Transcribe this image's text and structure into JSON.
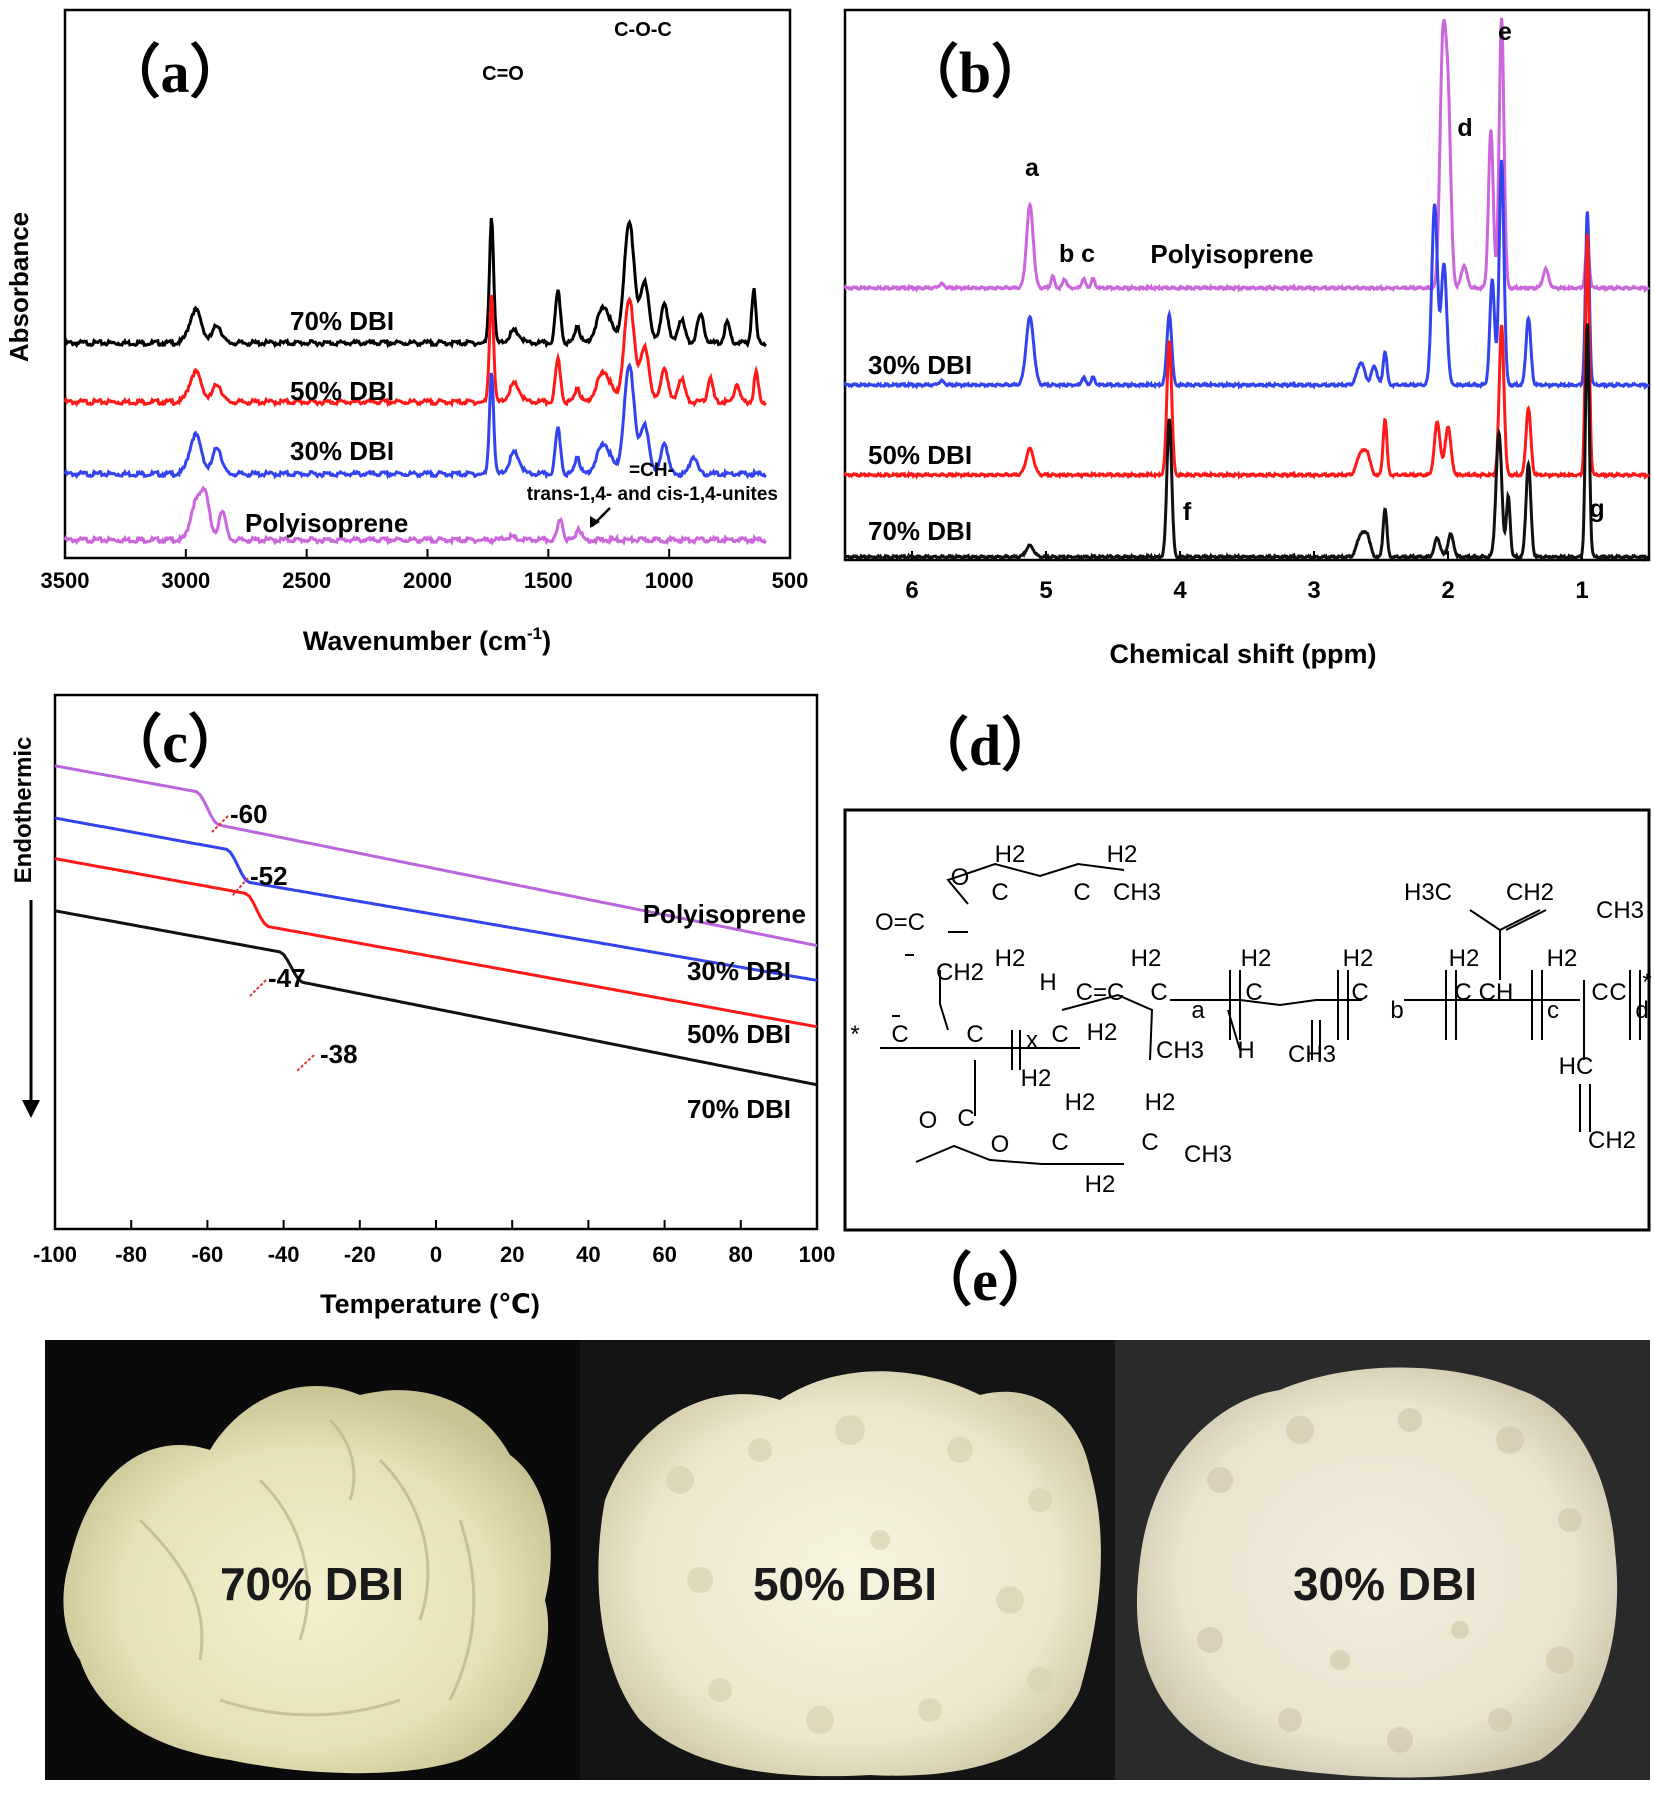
{
  "chart_data": [
    {
      "id": "a",
      "type": "line",
      "panel_label": "（a）",
      "xlabel": "Wavenumber (cm",
      "xlabel_sup": "-1",
      "xlabel_tail": ")",
      "ylabel": "Absorbance",
      "xlim": [
        3500,
        500
      ],
      "xticks": [
        "3500",
        "3000",
        "2500",
        "2000",
        "1500",
        "1000",
        "500"
      ],
      "series": [
        {
          "name": "70% DBI",
          "color": "#000000",
          "offset": 3.0,
          "peaks": [
            [
              2960,
              0.55,
              35
            ],
            [
              2870,
              0.3,
              25
            ],
            [
              1735,
              2.1,
              12
            ],
            [
              1640,
              0.2,
              30
            ],
            [
              1460,
              0.85,
              15
            ],
            [
              1380,
              0.3,
              15
            ],
            [
              1270,
              0.6,
              40
            ],
            [
              1165,
              2.0,
              30
            ],
            [
              1100,
              1.0,
              25
            ],
            [
              1020,
              0.7,
              20
            ],
            [
              950,
              0.4,
              20
            ],
            [
              870,
              0.45,
              20
            ],
            [
              760,
              0.35,
              15
            ],
            [
              650,
              0.9,
              12
            ]
          ]
        },
        {
          "name": "50% DBI",
          "color": "#ff1a1a",
          "offset": 2.0,
          "peaks": [
            [
              2960,
              0.5,
              35
            ],
            [
              2870,
              0.3,
              25
            ],
            [
              1735,
              1.8,
              12
            ],
            [
              1640,
              0.3,
              30
            ],
            [
              1460,
              0.7,
              15
            ],
            [
              1380,
              0.25,
              15
            ],
            [
              1270,
              0.5,
              40
            ],
            [
              1165,
              1.7,
              30
            ],
            [
              1100,
              0.9,
              25
            ],
            [
              1020,
              0.6,
              20
            ],
            [
              950,
              0.4,
              20
            ],
            [
              830,
              0.4,
              15
            ],
            [
              720,
              0.3,
              15
            ],
            [
              640,
              0.5,
              12
            ]
          ]
        },
        {
          "name": "30% DBI",
          "color": "#3344ee",
          "offset": 1.0,
          "peaks": [
            [
              2960,
              0.65,
              35
            ],
            [
              2870,
              0.45,
              25
            ],
            [
              1735,
              1.7,
              12
            ],
            [
              1640,
              0.35,
              30
            ],
            [
              1460,
              0.75,
              15
            ],
            [
              1380,
              0.3,
              15
            ],
            [
              1270,
              0.5,
              40
            ],
            [
              1165,
              1.8,
              30
            ],
            [
              1100,
              0.8,
              25
            ],
            [
              1020,
              0.55,
              20
            ],
            [
              900,
              0.3,
              20
            ]
          ]
        },
        {
          "name": "Polyisoprene",
          "color": "#cc66dd",
          "offset": 0.0,
          "peaks": [
            [
              2960,
              0.6,
              30
            ],
            [
              2920,
              0.75,
              25
            ],
            [
              2850,
              0.5,
              20
            ],
            [
              1660,
              0.05,
              30
            ],
            [
              1450,
              0.35,
              15
            ],
            [
              1375,
              0.2,
              15
            ]
          ]
        }
      ],
      "annotations": [
        "C=O",
        "C-O-C",
        "=CH-",
        "trans-1,4- and cis-1,4-unites"
      ]
    },
    {
      "id": "b",
      "type": "line",
      "panel_label": "（b）",
      "xlabel": "Chemical shift (ppm)",
      "xlim": [
        6.5,
        0.5
      ],
      "xticks": [
        "6",
        "5",
        "4",
        "3",
        "2",
        "1"
      ],
      "series": [
        {
          "name": "Polyisoprene",
          "color": "#cc66dd",
          "offset": 3.0,
          "peaks": [
            [
              5.78,
              0.05,
              0.03
            ],
            [
              5.12,
              1.1,
              0.035
            ],
            [
              4.95,
              0.15,
              0.02
            ],
            [
              4.86,
              0.12,
              0.02
            ],
            [
              4.72,
              0.12,
              0.02
            ],
            [
              4.65,
              0.12,
              0.02
            ],
            [
              2.04,
              3.0,
              0.03
            ],
            [
              2.0,
              2.4,
              0.03
            ],
            [
              1.88,
              0.3,
              0.03
            ],
            [
              1.68,
              2.1,
              0.025
            ],
            [
              1.6,
              3.6,
              0.025
            ],
            [
              1.27,
              0.25,
              0.03
            ],
            [
              0.96,
              0.6,
              0.02
            ]
          ]
        },
        {
          "name": "30% DBI",
          "color": "#3344ee",
          "offset": 2.0,
          "peaks": [
            [
              5.78,
              0.05,
              0.03
            ],
            [
              5.12,
              0.9,
              0.04
            ],
            [
              4.72,
              0.1,
              0.02
            ],
            [
              4.65,
              0.1,
              0.02
            ],
            [
              4.08,
              0.95,
              0.025
            ],
            [
              2.65,
              0.3,
              0.04
            ],
            [
              2.55,
              0.25,
              0.03
            ],
            [
              2.47,
              0.45,
              0.02
            ],
            [
              2.1,
              2.4,
              0.03
            ],
            [
              2.03,
              1.6,
              0.03
            ],
            [
              1.67,
              1.4,
              0.025
            ],
            [
              1.6,
              3.0,
              0.025
            ],
            [
              1.4,
              0.9,
              0.025
            ],
            [
              0.96,
              2.3,
              0.02
            ]
          ]
        },
        {
          "name": "50% DBI",
          "color": "#ff1a1a",
          "offset": 1.0,
          "peaks": [
            [
              5.12,
              0.35,
              0.04
            ],
            [
              4.08,
              1.8,
              0.025
            ],
            [
              2.65,
              0.3,
              0.04
            ],
            [
              2.6,
              0.25,
              0.03
            ],
            [
              2.47,
              0.75,
              0.02
            ],
            [
              2.08,
              0.7,
              0.03
            ],
            [
              2.0,
              0.65,
              0.03
            ],
            [
              1.6,
              2.0,
              0.025
            ],
            [
              1.4,
              0.9,
              0.025
            ],
            [
              0.96,
              3.2,
              0.02
            ]
          ]
        },
        {
          "name": "70% DBI",
          "color": "#111111",
          "offset": 0.0,
          "peaks": [
            [
              5.12,
              0.15,
              0.04
            ],
            [
              4.08,
              1.85,
              0.025
            ],
            [
              2.65,
              0.3,
              0.04
            ],
            [
              2.6,
              0.25,
              0.03
            ],
            [
              2.47,
              0.65,
              0.02
            ],
            [
              2.08,
              0.25,
              0.03
            ],
            [
              1.98,
              0.3,
              0.03
            ],
            [
              1.62,
              1.65,
              0.03
            ],
            [
              1.55,
              0.8,
              0.02
            ],
            [
              1.4,
              1.25,
              0.025
            ],
            [
              0.96,
              3.1,
              0.02
            ]
          ]
        }
      ],
      "peak_labels": [
        "a",
        "b c",
        "Polyisoprene",
        "d",
        "e",
        "f",
        "g"
      ]
    },
    {
      "id": "c",
      "type": "line",
      "panel_label": "（c）",
      "xlabel": "Temperature (℃)",
      "ylabel": "Endothermic",
      "xlim": [
        -100,
        100
      ],
      "xticks": [
        "-100",
        "-80",
        "-60",
        "-40",
        "-20",
        "0",
        "20",
        "40",
        "60",
        "80",
        "100"
      ],
      "series": [
        {
          "name": "Polyisoprene",
          "color": "#bb66dd",
          "start": 5.1,
          "step": 0.5,
          "tg": -60,
          "end": 2.0
        },
        {
          "name": "30% DBI",
          "color": "#3344ee",
          "start": 4.2,
          "step": 0.5,
          "tg": -52,
          "end": 1.4
        },
        {
          "name": "50% DBI",
          "color": "#ff1a1a",
          "start": 3.5,
          "step": 0.5,
          "tg": -47,
          "end": 0.6
        },
        {
          "name": "70% DBI",
          "color": "#111111",
          "start": 2.6,
          "step": 0.45,
          "tg": -38,
          "end": -0.4
        }
      ],
      "tg_labels": [
        "-60",
        "-52",
        "-47",
        "-38"
      ]
    }
  ],
  "panel_d": {
    "label": "（d）",
    "texts": [
      "H2",
      "H2",
      "O",
      "C",
      "C",
      "CH3",
      "O=C",
      "H2",
      "CH2",
      "H",
      "H2",
      "C",
      "a",
      "H2",
      "C",
      "H2",
      "C",
      "b",
      "H2",
      "C",
      "CH",
      "c",
      "H2",
      "C",
      "C",
      "d",
      "*",
      "H3C",
      "CH2",
      "CH3",
      "H2",
      "*",
      "C",
      "C",
      "x",
      "C",
      "C=C",
      "CH3",
      "H",
      "CH3",
      "H2",
      "HC",
      "CH2",
      "O",
      "C",
      "O",
      "C",
      "C",
      "CH3",
      "H2",
      "H2",
      "H2"
    ]
  },
  "panel_e": {
    "label": "（e）",
    "photos": [
      "70% DBI",
      "50% DBI",
      "30% DBI"
    ]
  }
}
